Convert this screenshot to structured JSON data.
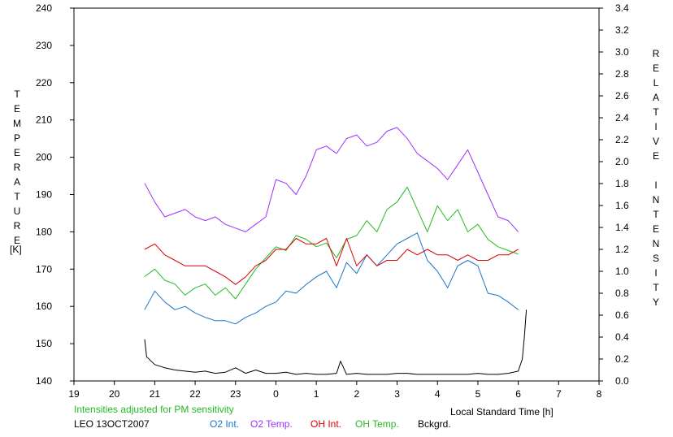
{
  "chart_data": {
    "type": "line",
    "title": "",
    "xlabel": "Local Standard Time [h]",
    "ylabel_left": "TEMPERATURE",
    "ylabel_left_unit": "[K]",
    "ylabel_right": "RELATIVE INTENSITY",
    "x_ticks": [
      "19",
      "20",
      "21",
      "22",
      "23",
      "0",
      "1",
      "2",
      "3",
      "4",
      "5",
      "6",
      "7",
      "8"
    ],
    "x_range": [
      19,
      32
    ],
    "y_left_range": [
      140,
      240
    ],
    "y_left_ticks": [
      "140",
      "150",
      "160",
      "170",
      "180",
      "190",
      "200",
      "210",
      "220",
      "230",
      "240"
    ],
    "y_right_range": [
      0,
      3.4
    ],
    "y_right_ticks": [
      "0.0",
      "0.2",
      "0.4",
      "0.6",
      "0.8",
      "1.0",
      "1.2",
      "1.4",
      "1.6",
      "1.8",
      "2.0",
      "2.2",
      "2.4",
      "2.6",
      "2.8",
      "3.0",
      "3.2",
      "3.4"
    ],
    "grid": false,
    "note": "Intensities adjusted for PM sensitivity",
    "station": "LEO 13OCT2007",
    "series": [
      {
        "name": "O2 Int.",
        "axis": "right",
        "color": "#1874cd",
        "x": [
          20.75,
          21.0,
          21.25,
          21.5,
          21.75,
          22.0,
          22.25,
          22.5,
          22.75,
          23.0,
          23.25,
          23.5,
          23.75,
          24.0,
          24.25,
          24.5,
          24.75,
          25.0,
          25.25,
          25.5,
          25.75,
          26.0,
          26.25,
          26.5,
          26.75,
          27.0,
          27.25,
          27.5,
          27.75,
          28.0,
          28.25,
          28.5,
          28.75,
          29.0,
          29.25,
          29.5,
          29.75,
          30.0
        ],
        "y": [
          0.65,
          0.82,
          0.72,
          0.65,
          0.68,
          0.62,
          0.58,
          0.55,
          0.55,
          0.52,
          0.58,
          0.62,
          0.68,
          0.72,
          0.82,
          0.8,
          0.88,
          0.95,
          1.0,
          0.85,
          1.08,
          0.98,
          1.15,
          1.05,
          1.15,
          1.25,
          1.3,
          1.35,
          1.1,
          1.0,
          0.85,
          1.05,
          1.1,
          1.05,
          0.8,
          0.78,
          0.72,
          0.65
        ]
      },
      {
        "name": "O2 Temp.",
        "axis": "left",
        "color": "#9b30ff",
        "x": [
          20.75,
          21.0,
          21.25,
          21.5,
          21.75,
          22.0,
          22.25,
          22.5,
          22.75,
          23.0,
          23.25,
          23.5,
          23.75,
          24.0,
          24.25,
          24.5,
          24.75,
          25.0,
          25.25,
          25.5,
          25.75,
          26.0,
          26.25,
          26.5,
          26.75,
          27.0,
          27.25,
          27.5,
          27.75,
          28.0,
          28.25,
          28.5,
          28.75,
          29.0,
          29.25,
          29.5,
          29.75,
          30.0
        ],
        "y": [
          193,
          188,
          184,
          185,
          186,
          184,
          183,
          184,
          182,
          181,
          180,
          182,
          184,
          194,
          193,
          190,
          195,
          202,
          203,
          201,
          205,
          206,
          203,
          204,
          207,
          208,
          205,
          201,
          199,
          197,
          194,
          198,
          202,
          196,
          190,
          184,
          183,
          180
        ]
      },
      {
        "name": "OH Int.",
        "axis": "right",
        "color": "#dd0000",
        "x": [
          20.75,
          21.0,
          21.25,
          21.5,
          21.75,
          22.0,
          22.25,
          22.5,
          22.75,
          23.0,
          23.25,
          23.5,
          23.75,
          24.0,
          24.25,
          24.5,
          24.75,
          25.0,
          25.25,
          25.5,
          25.75,
          26.0,
          26.25,
          26.5,
          26.75,
          27.0,
          27.25,
          27.5,
          27.75,
          28.0,
          28.25,
          28.5,
          28.75,
          29.0,
          29.25,
          29.5,
          29.75,
          30.0
        ],
        "y": [
          1.2,
          1.25,
          1.15,
          1.1,
          1.05,
          1.05,
          1.05,
          1.0,
          0.95,
          0.88,
          0.95,
          1.05,
          1.1,
          1.2,
          1.2,
          1.3,
          1.25,
          1.25,
          1.3,
          1.05,
          1.3,
          1.05,
          1.15,
          1.05,
          1.1,
          1.1,
          1.2,
          1.15,
          1.2,
          1.15,
          1.15,
          1.1,
          1.15,
          1.1,
          1.1,
          1.15,
          1.15,
          1.2
        ]
      },
      {
        "name": "OH Temp.",
        "axis": "left",
        "color": "#22bb22",
        "x": [
          20.75,
          21.0,
          21.25,
          21.5,
          21.75,
          22.0,
          22.25,
          22.5,
          22.75,
          23.0,
          23.25,
          23.5,
          23.75,
          24.0,
          24.25,
          24.5,
          24.75,
          25.0,
          25.25,
          25.5,
          25.75,
          26.0,
          26.25,
          26.5,
          26.75,
          27.0,
          27.25,
          27.5,
          27.75,
          28.0,
          28.25,
          28.5,
          28.75,
          29.0,
          29.25,
          29.5,
          29.75,
          30.0
        ],
        "y": [
          168,
          170,
          167,
          166,
          163,
          165,
          166,
          163,
          165,
          162,
          166,
          170,
          173,
          176,
          175,
          179,
          178,
          176,
          177,
          173,
          178,
          179,
          183,
          180,
          186,
          188,
          192,
          186,
          180,
          187,
          183,
          186,
          180,
          182,
          178,
          176,
          175,
          174
        ]
      },
      {
        "name": "Bckgrd.",
        "axis": "right",
        "color": "#000000",
        "x": [
          20.75,
          20.8,
          21.0,
          21.25,
          21.5,
          21.75,
          22.0,
          22.25,
          22.5,
          22.75,
          23.0,
          23.25,
          23.5,
          23.75,
          24.0,
          24.25,
          24.5,
          24.75,
          25.0,
          25.25,
          25.5,
          25.6,
          25.75,
          26.0,
          26.25,
          26.5,
          26.75,
          27.0,
          27.25,
          27.5,
          27.75,
          28.0,
          28.25,
          28.5,
          28.75,
          29.0,
          29.25,
          29.5,
          29.75,
          30.0,
          30.1,
          30.15,
          30.2
        ],
        "y": [
          0.38,
          0.22,
          0.15,
          0.12,
          0.1,
          0.09,
          0.08,
          0.09,
          0.07,
          0.08,
          0.12,
          0.07,
          0.1,
          0.07,
          0.07,
          0.08,
          0.06,
          0.07,
          0.06,
          0.06,
          0.07,
          0.18,
          0.06,
          0.07,
          0.06,
          0.06,
          0.06,
          0.07,
          0.07,
          0.06,
          0.06,
          0.06,
          0.06,
          0.06,
          0.06,
          0.07,
          0.06,
          0.06,
          0.07,
          0.09,
          0.2,
          0.4,
          0.65
        ]
      }
    ]
  }
}
